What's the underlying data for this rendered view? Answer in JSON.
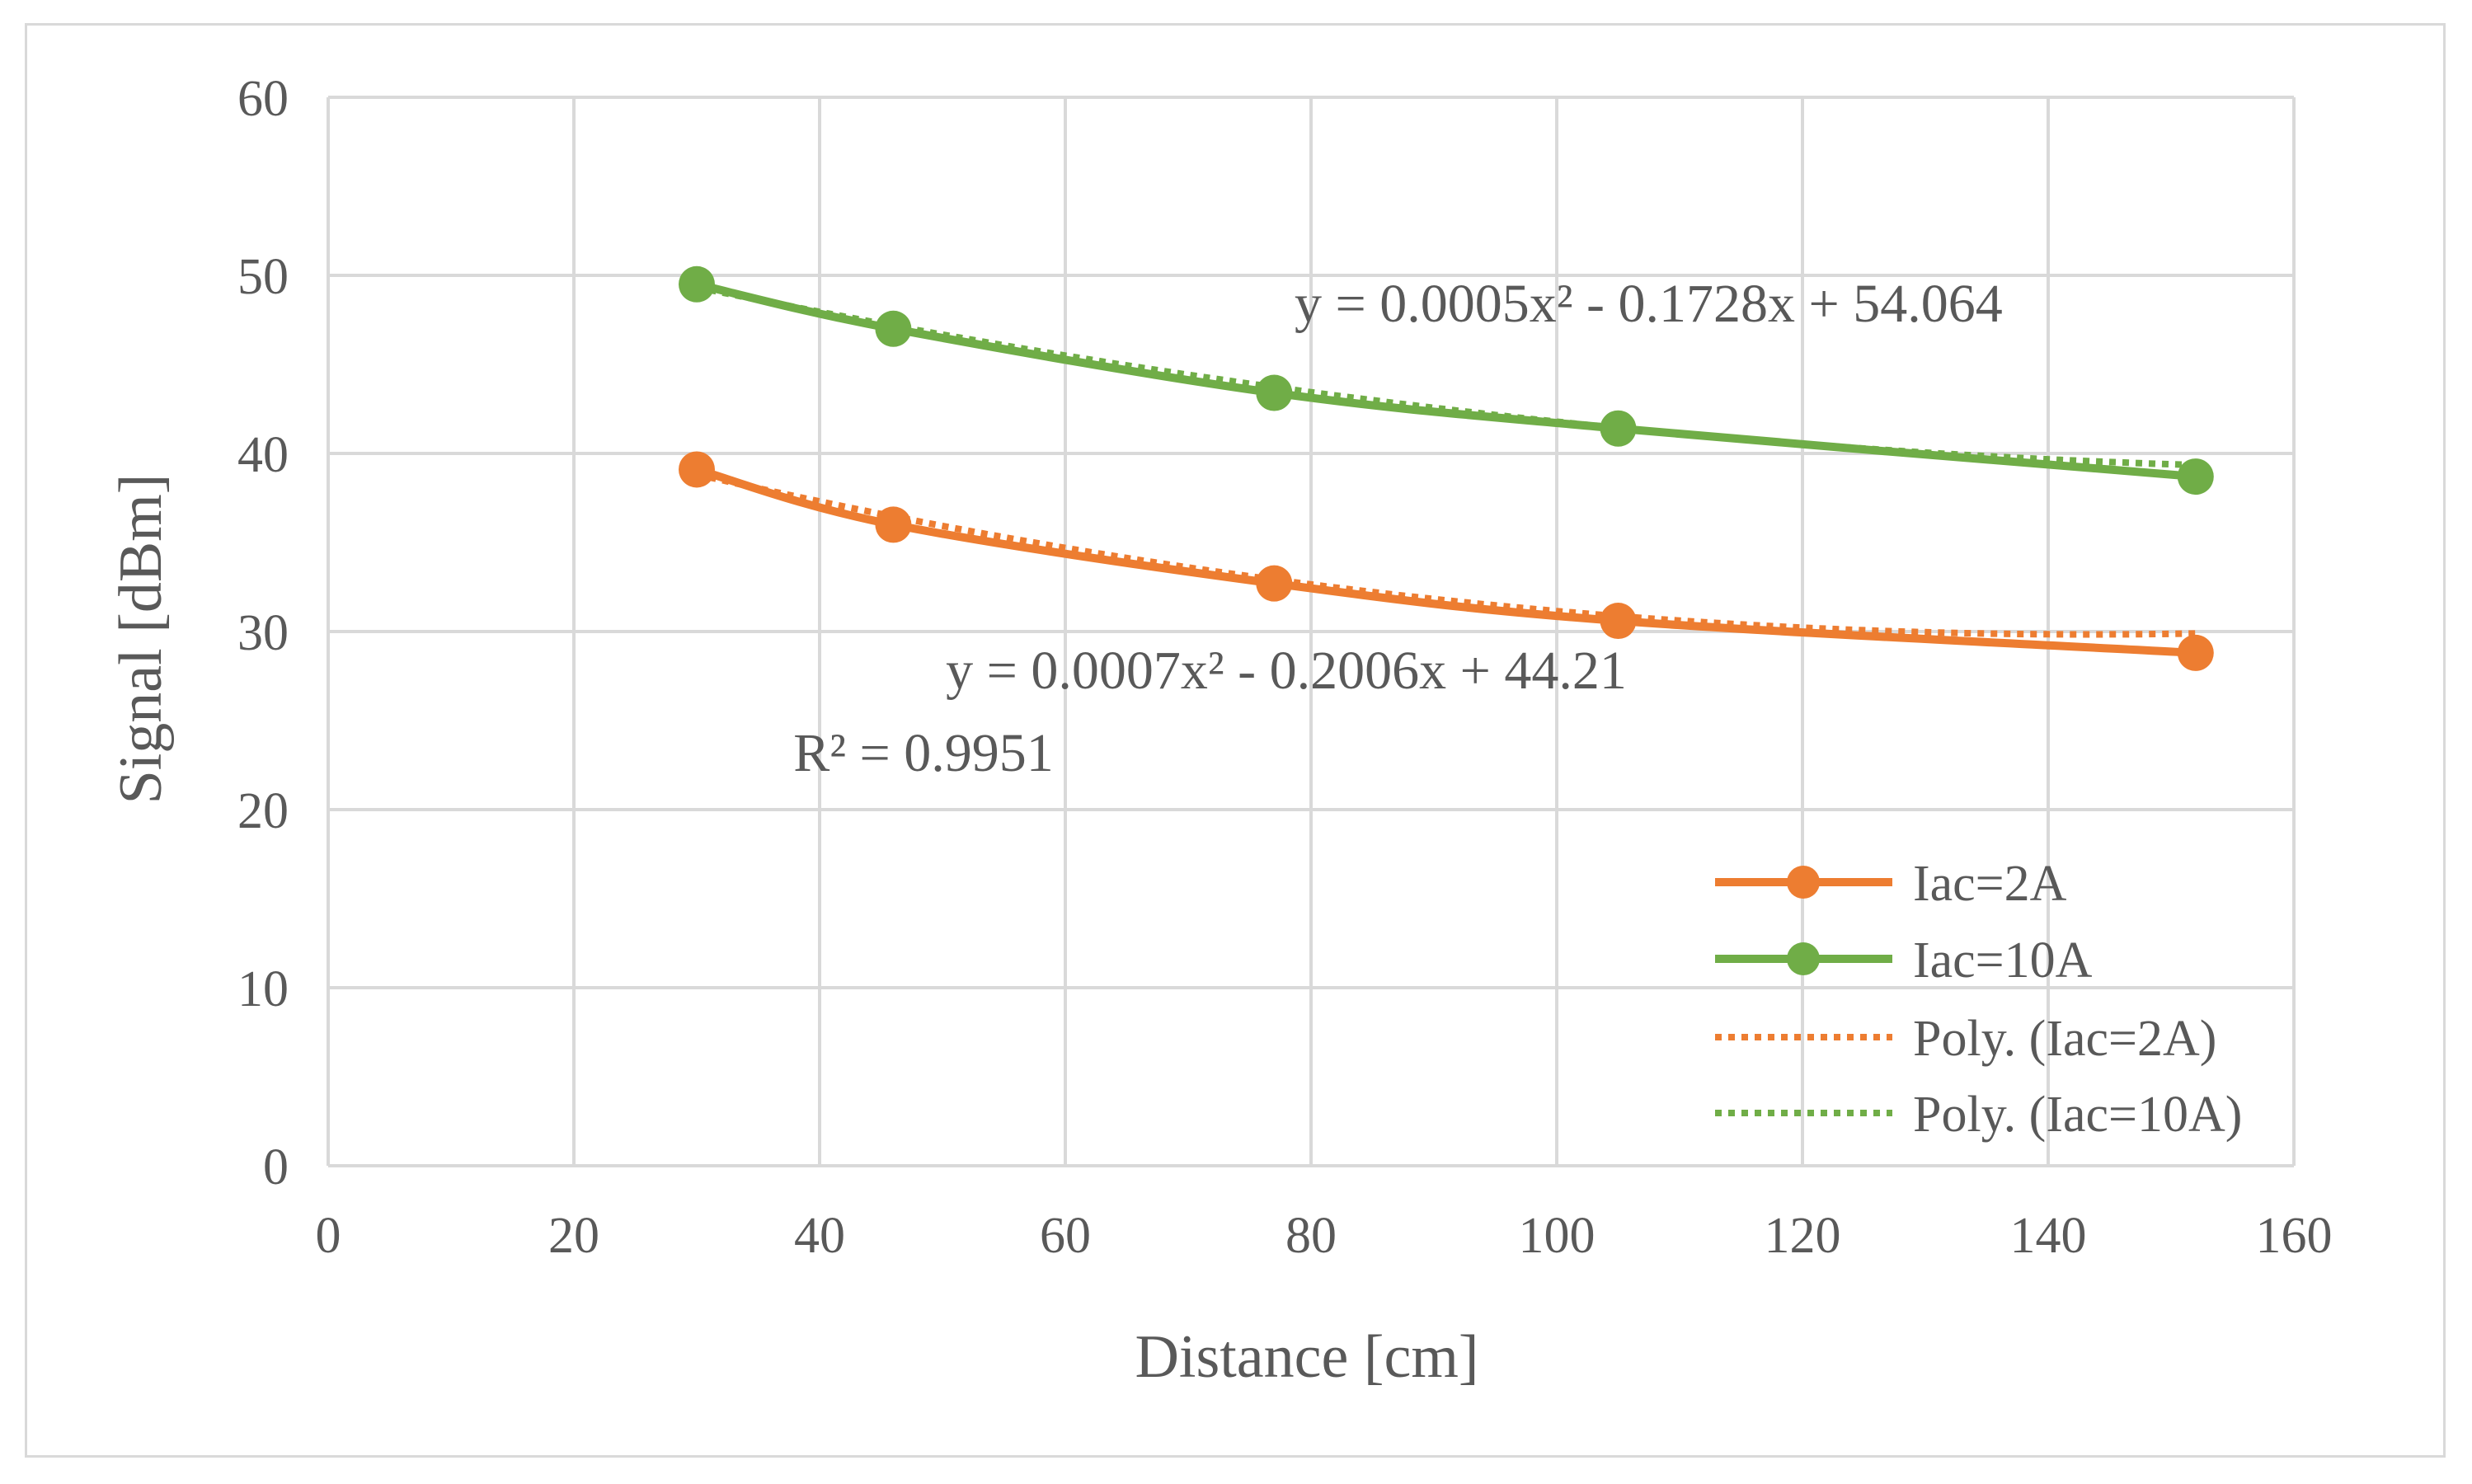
{
  "chart_data": {
    "type": "line",
    "xlabel": "Distance [cm]",
    "ylabel": "Signal [dBm]",
    "xlim": [
      0,
      160
    ],
    "ylim": [
      0,
      60
    ],
    "x_ticks": [
      0,
      20,
      40,
      60,
      80,
      100,
      120,
      140,
      160
    ],
    "y_ticks": [
      0,
      10,
      20,
      30,
      40,
      50,
      60
    ],
    "grid": true,
    "legend_position": "bottom-right",
    "series": [
      {
        "name": "Iac=2A",
        "color": "#ED7D31",
        "style": "solid-marker",
        "x": [
          30,
          46,
          77,
          105,
          152
        ],
        "values": [
          39.1,
          36.0,
          32.7,
          30.6,
          28.8
        ]
      },
      {
        "name": "Iac=10A",
        "color": "#70AD47",
        "style": "solid-marker",
        "x": [
          30,
          46,
          77,
          105,
          152
        ],
        "values": [
          49.5,
          47.0,
          43.4,
          41.4,
          38.7
        ]
      }
    ],
    "trendlines": [
      {
        "name": "Poly. (Iac=2A)",
        "color": "#ED7D31",
        "style": "dotted",
        "coefficients": [
          0.0007,
          -0.2006,
          44.21
        ],
        "x_range": [
          30,
          152
        ],
        "equation": "y = 0.0007x² - 0.2006x + 44.21",
        "r2": "R² = 0.9951"
      },
      {
        "name": "Poly. (Iac=10A)",
        "color": "#70AD47",
        "style": "dotted",
        "coefficients": [
          0.0005,
          -0.1728,
          54.064
        ],
        "x_range": [
          30,
          152
        ],
        "equation": "y = 0.0005x² - 0.1728x + 54.064"
      }
    ]
  }
}
